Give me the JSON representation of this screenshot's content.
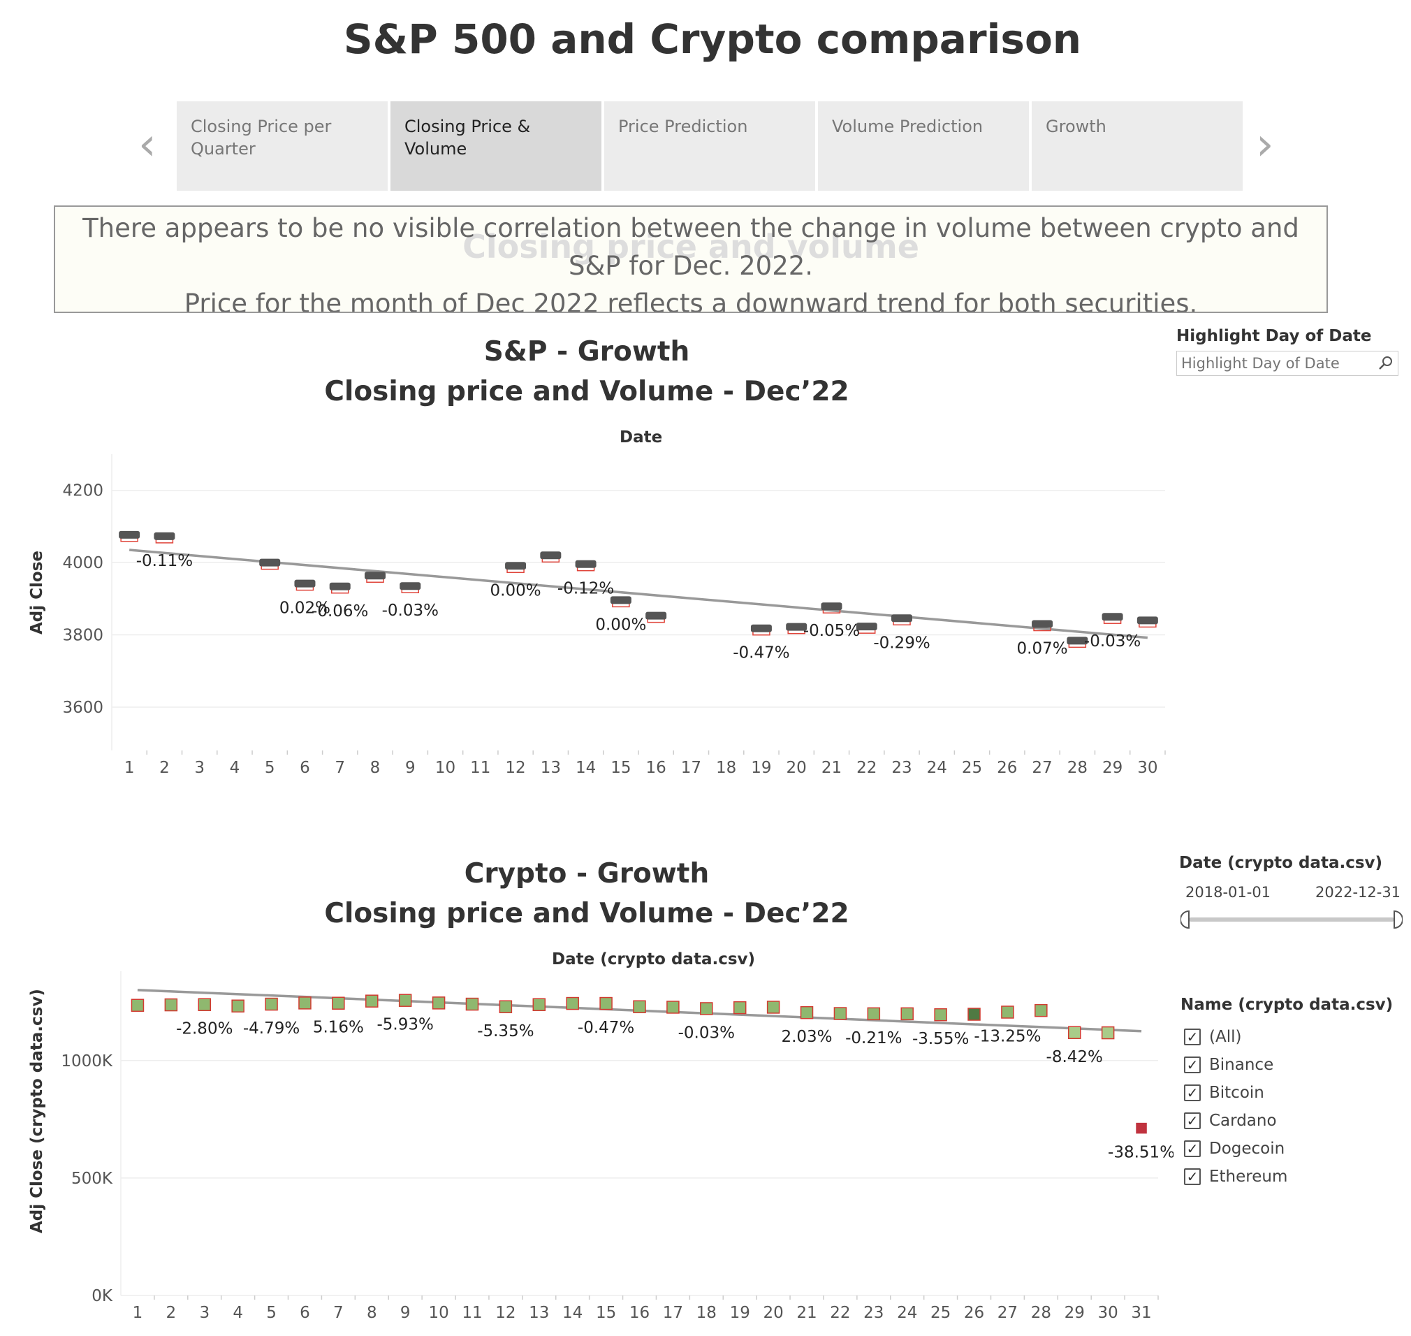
{
  "page_title": "S&P 500 and Crypto comparison",
  "story_tabs": [
    {
      "label": "Closing Price per Quarter",
      "active": false
    },
    {
      "label": "Closing Price & Volume",
      "active": true
    },
    {
      "label": "Price Prediction",
      "active": false
    },
    {
      "label": "Volume Prediction",
      "active": false
    },
    {
      "label": "Growth",
      "active": false
    }
  ],
  "caption": {
    "ghost_title": "Closing price and volume",
    "line1": "There appears to be no visible correlation between the change in volume between crypto and S&P for Dec. 2022.",
    "line2": "Price for the month of Dec 2022 reflects a downward trend for both securities."
  },
  "filters": {
    "highlight": {
      "title": "Highlight Day of Date",
      "placeholder": "Highlight Day of Date"
    },
    "date_range": {
      "title": "Date (crypto data.csv)",
      "start": "2018-01-01",
      "end": "2022-12-31"
    },
    "names": {
      "title": "Name (crypto data.csv)",
      "options": [
        {
          "label": "(All)",
          "checked": true
        },
        {
          "label": "Binance",
          "checked": true
        },
        {
          "label": "Bitcoin",
          "checked": true
        },
        {
          "label": "Cardano",
          "checked": true
        },
        {
          "label": "Dogecoin",
          "checked": true
        },
        {
          "label": "Ethereum",
          "checked": true
        }
      ]
    }
  },
  "colors": {
    "sp_mark": "#555555",
    "sp_outline": "#e0443a",
    "crypto_fill_green": "#8fb86f",
    "crypto_fill_dark": "#4f7a43",
    "crypto_outline": "#d23b31",
    "crypto_red": "#c0323e",
    "trend": "#999999",
    "grid": "#eeeeee"
  },
  "chart_data": [
    {
      "type": "scatter",
      "id": "sp",
      "title": "S&P - Growth",
      "subtitle": "Closing price and Volume - Dec’22",
      "xlabel": "Date",
      "ylabel": "Adj Close",
      "x_ticks": [
        "1",
        "2",
        "3",
        "4",
        "5",
        "6",
        "7",
        "8",
        "9",
        "10",
        "11",
        "12",
        "13",
        "14",
        "15",
        "16",
        "17",
        "18",
        "19",
        "20",
        "21",
        "22",
        "23",
        "24",
        "25",
        "26",
        "27",
        "28",
        "29",
        "30"
      ],
      "ylim": [
        3480,
        4300
      ],
      "y_ticks": [
        3600,
        3800,
        4000,
        4200
      ],
      "y_tick_labels": [
        "3600",
        "3800",
        "4000",
        "4200"
      ],
      "points": [
        {
          "x": 1,
          "y": 4076
        },
        {
          "x": 2,
          "y": 4072
        },
        {
          "x": 5,
          "y": 3999
        },
        {
          "x": 6,
          "y": 3941
        },
        {
          "x": 7,
          "y": 3933
        },
        {
          "x": 8,
          "y": 3963
        },
        {
          "x": 9,
          "y": 3934
        },
        {
          "x": 12,
          "y": 3990
        },
        {
          "x": 13,
          "y": 4019
        },
        {
          "x": 14,
          "y": 3995
        },
        {
          "x": 15,
          "y": 3895
        },
        {
          "x": 16,
          "y": 3852
        },
        {
          "x": 19,
          "y": 3817
        },
        {
          "x": 20,
          "y": 3821
        },
        {
          "x": 21,
          "y": 3878
        },
        {
          "x": 22,
          "y": 3822
        },
        {
          "x": 23,
          "y": 3845
        },
        {
          "x": 27,
          "y": 3829
        },
        {
          "x": 28,
          "y": 3783
        },
        {
          "x": 29,
          "y": 3849
        },
        {
          "x": 30,
          "y": 3839
        }
      ],
      "data_labels": [
        {
          "x": 2,
          "y": 4072,
          "text": "-0.11%"
        },
        {
          "x": 6,
          "y": 3941,
          "text": "0.02%"
        },
        {
          "x": 7,
          "y": 3933,
          "text": "-0.06%"
        },
        {
          "x": 9,
          "y": 3934,
          "text": "-0.03%"
        },
        {
          "x": 12,
          "y": 3990,
          "text": "0.00%"
        },
        {
          "x": 14,
          "y": 3995,
          "text": "-0.12%"
        },
        {
          "x": 15,
          "y": 3895,
          "text": "0.00%"
        },
        {
          "x": 19,
          "y": 3817,
          "text": "-0.47%"
        },
        {
          "x": 21,
          "y": 3878,
          "text": "-0.05%"
        },
        {
          "x": 23,
          "y": 3845,
          "text": "-0.29%"
        },
        {
          "x": 27,
          "y": 3829,
          "text": "0.07%"
        },
        {
          "x": 29,
          "y": 3849,
          "text": "-0.03%"
        }
      ],
      "trend": {
        "x": [
          1,
          30
        ],
        "y": [
          4035,
          3792
        ]
      }
    },
    {
      "type": "scatter",
      "id": "crypto",
      "title": "Crypto - Growth",
      "subtitle": "Closing price and Volume - Dec’22",
      "xlabel": "Date (crypto data.csv)",
      "ylabel": "Adj Close (crypto data.csv)",
      "x_ticks": [
        "1",
        "2",
        "3",
        "4",
        "5",
        "6",
        "7",
        "8",
        "9",
        "10",
        "11",
        "12",
        "13",
        "14",
        "15",
        "16",
        "17",
        "18",
        "19",
        "20",
        "21",
        "22",
        "23",
        "24",
        "25",
        "26",
        "27",
        "28",
        "29",
        "30",
        "31"
      ],
      "ylim": [
        0,
        1380000
      ],
      "y_ticks": [
        0,
        500000,
        1000000
      ],
      "y_tick_labels": [
        "0K",
        "500K",
        "1000K"
      ],
      "points": [
        {
          "x": 1,
          "y": 1235000,
          "style": "green"
        },
        {
          "x": 2,
          "y": 1237000,
          "style": "green"
        },
        {
          "x": 3,
          "y": 1238000,
          "style": "green"
        },
        {
          "x": 4,
          "y": 1232000,
          "style": "green"
        },
        {
          "x": 5,
          "y": 1240000,
          "style": "green"
        },
        {
          "x": 6,
          "y": 1245000,
          "style": "green"
        },
        {
          "x": 7,
          "y": 1244000,
          "style": "green"
        },
        {
          "x": 8,
          "y": 1253000,
          "style": "green"
        },
        {
          "x": 9,
          "y": 1256000,
          "style": "green"
        },
        {
          "x": 10,
          "y": 1245000,
          "style": "green"
        },
        {
          "x": 11,
          "y": 1240000,
          "style": "green"
        },
        {
          "x": 12,
          "y": 1229000,
          "style": "green"
        },
        {
          "x": 13,
          "y": 1238000,
          "style": "green"
        },
        {
          "x": 14,
          "y": 1243000,
          "style": "green"
        },
        {
          "x": 15,
          "y": 1243000,
          "style": "green"
        },
        {
          "x": 16,
          "y": 1229000,
          "style": "green"
        },
        {
          "x": 17,
          "y": 1227000,
          "style": "green"
        },
        {
          "x": 18,
          "y": 1221000,
          "style": "green"
        },
        {
          "x": 19,
          "y": 1225000,
          "style": "green"
        },
        {
          "x": 20,
          "y": 1227000,
          "style": "green"
        },
        {
          "x": 21,
          "y": 1204000,
          "style": "green"
        },
        {
          "x": 22,
          "y": 1200000,
          "style": "green"
        },
        {
          "x": 23,
          "y": 1199000,
          "style": "green"
        },
        {
          "x": 24,
          "y": 1199000,
          "style": "green"
        },
        {
          "x": 25,
          "y": 1195000,
          "style": "green"
        },
        {
          "x": 26,
          "y": 1197000,
          "style": "dark"
        },
        {
          "x": 27,
          "y": 1206000,
          "style": "green"
        },
        {
          "x": 28,
          "y": 1213000,
          "style": "green"
        },
        {
          "x": 29,
          "y": 1119000,
          "style": "light"
        },
        {
          "x": 30,
          "y": 1118000,
          "style": "light"
        },
        {
          "x": 31,
          "y": 712000,
          "style": "red"
        }
      ],
      "data_labels": [
        {
          "x": 3,
          "y": 1238000,
          "text": "-2.80%"
        },
        {
          "x": 5,
          "y": 1240000,
          "text": "-4.79%"
        },
        {
          "x": 7,
          "y": 1244000,
          "text": "5.16%"
        },
        {
          "x": 9,
          "y": 1256000,
          "text": "-5.93%"
        },
        {
          "x": 12,
          "y": 1229000,
          "text": "-5.35%"
        },
        {
          "x": 15,
          "y": 1243000,
          "text": "-0.47%"
        },
        {
          "x": 18,
          "y": 1221000,
          "text": "-0.03%"
        },
        {
          "x": 21,
          "y": 1204000,
          "text": "2.03%"
        },
        {
          "x": 23,
          "y": 1199000,
          "text": "-0.21%"
        },
        {
          "x": 25,
          "y": 1195000,
          "text": "-3.55%"
        },
        {
          "x": 27,
          "y": 1206000,
          "text": "-13.25%"
        },
        {
          "x": 29,
          "y": 1119000,
          "text": "-8.42%"
        },
        {
          "x": 31,
          "y": 712000,
          "text": "-38.51%"
        }
      ],
      "trend": {
        "x": [
          1,
          31
        ],
        "y": [
          1300000,
          1125000
        ]
      }
    }
  ]
}
